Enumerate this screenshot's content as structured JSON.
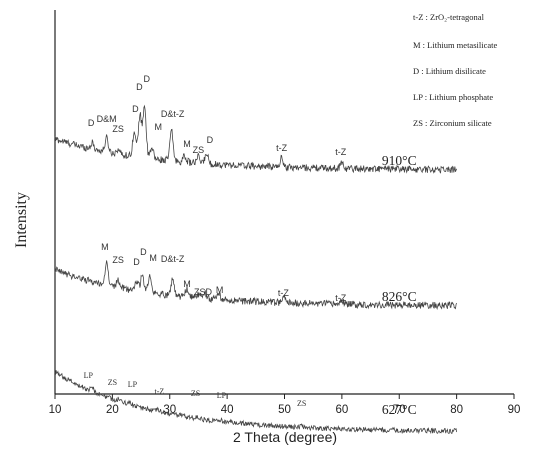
{
  "chart_data": {
    "type": "line",
    "xlabel": "2 Theta (degree)",
    "ylabel": "Intensity",
    "xlim": [
      10,
      90
    ],
    "x_ticks": [
      "10",
      "20",
      "30",
      "40",
      "50",
      "60",
      "70",
      "80",
      "90"
    ],
    "legend": [
      "t-Z : ZrO₂-tetragonal",
      "M : Lithium metasilicate",
      "D : Lithium disilicate",
      "LP : Lithium phosphate",
      "ZS : Zirconium silicate"
    ],
    "series": [
      {
        "name": "910°C",
        "x_range": [
          10,
          80
        ],
        "baseline_start": 66,
        "baseline_end": 35,
        "peaks": [
          [
            16.5,
            6
          ],
          [
            19.0,
            14
          ],
          [
            21.0,
            5
          ],
          [
            23.8,
            24
          ],
          [
            24.8,
            42
          ],
          [
            25.6,
            52
          ],
          [
            26.9,
            10
          ],
          [
            30.3,
            30
          ],
          [
            32.6,
            6
          ],
          [
            35.0,
            6
          ],
          [
            36.4,
            10
          ],
          [
            49.5,
            9
          ],
          [
            60.0,
            6
          ]
        ],
        "annotations": [
          {
            "text": "D",
            "x": 16.3,
            "y": 79
          },
          {
            "text": "D&M",
            "x": 19.0,
            "y": 83
          },
          {
            "text": "ZS",
            "x": 21.0,
            "y": 73
          },
          {
            "text": "D",
            "x": 24.0,
            "y": 93
          },
          {
            "text": "D",
            "x": 24.7,
            "y": 115
          },
          {
            "text": "D",
            "x": 26.0,
            "y": 123
          },
          {
            "text": "M",
            "x": 28.0,
            "y": 75
          },
          {
            "text": "D&t-Z",
            "x": 30.5,
            "y": 88
          },
          {
            "text": "M",
            "x": 33.0,
            "y": 58
          },
          {
            "text": "ZS",
            "x": 35.0,
            "y": 52
          },
          {
            "text": "D",
            "x": 37.0,
            "y": 62
          },
          {
            "text": "t-Z",
            "x": 49.5,
            "y": 54
          },
          {
            "text": "t-Z",
            "x": 59.8,
            "y": 50
          }
        ]
      },
      {
        "name": "826°C",
        "x_range": [
          10,
          80
        ],
        "baseline_start": 48,
        "baseline_end": 12,
        "peaks": [
          [
            19.0,
            22
          ],
          [
            21.0,
            7
          ],
          [
            24.2,
            10
          ],
          [
            25.2,
            16
          ],
          [
            26.5,
            16
          ],
          [
            30.5,
            16
          ],
          [
            33.0,
            8
          ],
          [
            35.2,
            5
          ],
          [
            36.2,
            5
          ],
          [
            38.5,
            6
          ],
          [
            50.0,
            5
          ],
          [
            60.0,
            4
          ]
        ],
        "annotations": [
          {
            "text": "M",
            "x": 18.7,
            "y": 68
          },
          {
            "text": "ZS",
            "x": 21.0,
            "y": 55
          },
          {
            "text": "D",
            "x": 24.2,
            "y": 53
          },
          {
            "text": "D",
            "x": 25.4,
            "y": 63
          },
          {
            "text": "M",
            "x": 27.1,
            "y": 57
          },
          {
            "text": "D&t-Z",
            "x": 30.5,
            "y": 56
          },
          {
            "text": "M",
            "x": 33.0,
            "y": 31
          },
          {
            "text": "ZSD",
            "x": 35.8,
            "y": 23
          },
          {
            "text": "M",
            "x": 38.7,
            "y": 25
          },
          {
            "text": "t-Z",
            "x": 49.8,
            "y": 22
          },
          {
            "text": "t-Z",
            "x": 59.8,
            "y": 17
          }
        ]
      },
      {
        "name": "627°C",
        "x_range": [
          10,
          80
        ],
        "baseline_start": 20,
        "baseline_end": -40,
        "peaks": [
          [
            16.5,
            4
          ],
          [
            21.0,
            2
          ],
          [
            23.0,
            2
          ],
          [
            28.0,
            1.5
          ],
          [
            32.0,
            1.5
          ],
          [
            35.0,
            1.5
          ],
          [
            39.0,
            1
          ],
          [
            53.0,
            1
          ]
        ],
        "annotations": [
          {
            "text": "LP",
            "x": 15.8,
            "y": 14
          },
          {
            "text": "ZS",
            "x": 20.0,
            "y": 7
          },
          {
            "text": "LP",
            "x": 23.5,
            "y": 5
          },
          {
            "text": "t-Z",
            "x": 28.2,
            "y": -2
          },
          {
            "text": "ZS",
            "x": 34.5,
            "y": -4
          },
          {
            "text": "LP",
            "x": 39.0,
            "y": -6
          },
          {
            "text": "ZS",
            "x": 53.0,
            "y": -14
          }
        ]
      }
    ]
  }
}
